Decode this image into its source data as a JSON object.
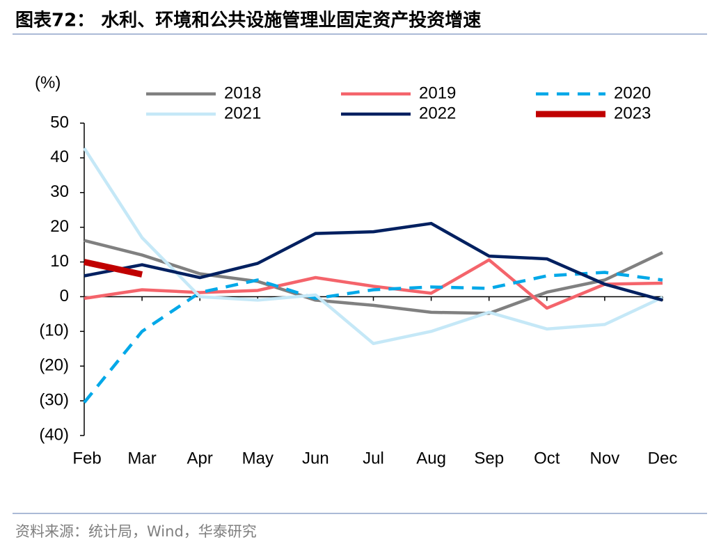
{
  "title": "图表72：  水利、环境和公共设施管理业固定资产投资增速",
  "source": "资料来源：统计局，Wind，华泰研究",
  "chart_data": {
    "type": "line",
    "y_label": "(%)",
    "categories": [
      "Feb",
      "Mar",
      "Apr",
      "May",
      "Jun",
      "Jul",
      "Aug",
      "Sep",
      "Oct",
      "Nov",
      "Dec"
    ],
    "series": [
      {
        "name": "2018",
        "color": "#808080",
        "values": [
          16.2,
          12.0,
          6.6,
          4.4,
          -1.0,
          -2.5,
          -4.5,
          -4.8,
          1.3,
          4.8,
          12.7
        ]
      },
      {
        "name": "2019",
        "color": "#f4646b",
        "values": [
          -0.5,
          2.0,
          1.2,
          1.8,
          5.5,
          3.0,
          1.0,
          10.6,
          -3.3,
          3.6,
          3.9
        ]
      },
      {
        "name": "2020",
        "color": "#00a8e8",
        "dashed": true,
        "values": [
          -30.5,
          -10.0,
          1.2,
          4.8,
          -0.5,
          2.0,
          2.8,
          2.4,
          6.0,
          7.0,
          4.8
        ]
      },
      {
        "name": "2021",
        "color": "#c5e8f7",
        "values": [
          42.8,
          17.0,
          0.0,
          -1.0,
          0.5,
          -13.5,
          -10.0,
          -4.5,
          -9.3,
          -8.0,
          -0.2
        ]
      },
      {
        "name": "2022",
        "color": "#002060",
        "values": [
          6.0,
          9.2,
          5.5,
          9.6,
          18.2,
          18.7,
          21.1,
          11.7,
          10.9,
          3.6,
          -1.0
        ]
      },
      {
        "name": "2023",
        "color": "#c00000",
        "values": [
          10.0,
          6.4,
          null,
          null,
          null,
          null,
          null,
          null,
          null,
          null,
          null
        ]
      }
    ],
    "ylim": [
      -40,
      50
    ],
    "yticks": [
      50,
      40,
      30,
      20,
      10,
      0,
      {
        "value": -10,
        "label": "(10)"
      },
      {
        "value": -20,
        "label": "(20)"
      },
      {
        "value": -30,
        "label": "(30)"
      },
      {
        "value": -40,
        "label": "(40)"
      }
    ],
    "legend": "top"
  }
}
